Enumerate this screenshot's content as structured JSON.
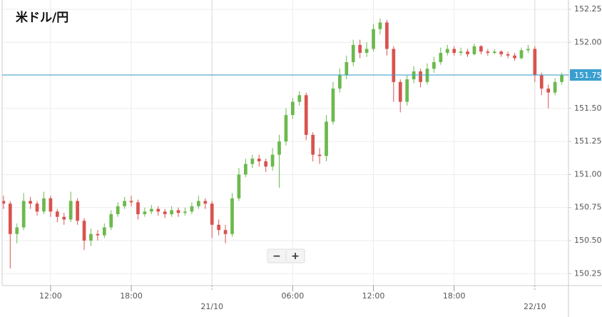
{
  "chart_data": {
    "type": "candlestick",
    "title": "米ドル/円",
    "x": [
      8.5,
      9,
      9.5,
      10,
      10.5,
      11,
      11.5,
      12,
      12.5,
      13,
      13.5,
      14,
      14.5,
      15,
      15.5,
      16,
      16.5,
      17,
      17.5,
      18,
      18.5,
      19,
      19.5,
      20,
      20.5,
      21,
      21.5,
      22,
      22.5,
      23,
      23.5,
      24,
      24.5,
      25,
      25.5,
      26,
      26.5,
      27,
      27.5,
      28,
      28.5,
      29,
      29.5,
      30,
      30.5,
      31,
      31.5,
      32,
      32.5,
      33,
      33.5,
      34,
      34.5,
      35,
      35.5,
      36,
      36.5,
      37,
      37.5,
      38,
      38.5,
      39,
      39.5,
      40,
      40.5,
      41,
      41.5,
      42,
      42.5,
      43,
      43.5,
      44,
      44.5,
      45,
      45.5,
      46,
      46.5,
      47,
      47.5,
      48,
      48.5,
      49,
      49.5,
      50
    ],
    "open": [
      150.8,
      150.78,
      150.55,
      150.6,
      150.8,
      150.78,
      150.72,
      150.82,
      150.72,
      150.68,
      150.66,
      150.8,
      150.65,
      150.5,
      150.55,
      150.54,
      150.6,
      150.7,
      150.76,
      150.8,
      150.79,
      150.7,
      150.72,
      150.74,
      150.72,
      150.7,
      150.73,
      150.71,
      150.72,
      150.76,
      150.8,
      150.78,
      150.62,
      150.58,
      150.55,
      150.82,
      151.0,
      151.08,
      151.12,
      151.1,
      151.06,
      151.15,
      151.25,
      151.45,
      151.55,
      151.6,
      151.3,
      151.15,
      151.14,
      151.4,
      151.65,
      151.75,
      151.85,
      151.98,
      151.92,
      151.95,
      152.1,
      152.15,
      151.95,
      151.7,
      151.55,
      151.72,
      151.78,
      151.7,
      151.8,
      151.85,
      151.92,
      151.95,
      151.92,
      151.93,
      151.91,
      151.97,
      151.93,
      151.92,
      151.93,
      151.91,
      151.9,
      151.88,
      151.94,
      151.95,
      151.75,
      151.65,
      151.62,
      151.7
    ],
    "high": [
      150.84,
      150.8,
      150.63,
      150.86,
      150.83,
      150.8,
      150.87,
      150.84,
      150.74,
      150.71,
      150.87,
      150.82,
      150.67,
      150.59,
      150.58,
      150.63,
      150.73,
      150.79,
      150.83,
      150.84,
      150.81,
      150.75,
      150.77,
      150.76,
      150.74,
      150.76,
      150.75,
      150.75,
      150.79,
      150.84,
      150.82,
      150.8,
      150.66,
      150.62,
      150.86,
      151.05,
      151.12,
      151.15,
      151.15,
      151.12,
      151.2,
      151.3,
      151.5,
      151.58,
      151.63,
      151.62,
      151.32,
      151.2,
      151.45,
      151.7,
      151.8,
      151.9,
      152.02,
      152.02,
      152.0,
      152.14,
      152.18,
      152.17,
      151.97,
      151.72,
      151.75,
      151.82,
      151.8,
      151.84,
      151.89,
      151.96,
      151.98,
      151.97,
      151.96,
      151.95,
      151.99,
      151.98,
      151.95,
      151.95,
      151.94,
      151.93,
      151.92,
      151.96,
      151.98,
      151.97,
      151.77,
      151.68,
      151.73,
      151.77
    ],
    "low": [
      150.74,
      150.29,
      150.48,
      150.58,
      150.74,
      150.69,
      150.7,
      150.68,
      150.64,
      150.62,
      150.64,
      150.62,
      150.43,
      150.46,
      150.5,
      150.52,
      150.58,
      150.68,
      150.74,
      150.76,
      150.66,
      150.68,
      150.7,
      150.69,
      150.67,
      150.68,
      150.68,
      150.69,
      150.7,
      150.74,
      150.74,
      150.52,
      150.54,
      150.48,
      150.53,
      150.8,
      150.98,
      151.05,
      151.06,
      151.02,
      151.03,
      150.9,
      151.22,
      151.42,
      151.52,
      151.26,
      151.1,
      151.08,
      151.1,
      151.38,
      151.62,
      151.72,
      151.82,
      151.88,
      151.89,
      151.93,
      152.06,
      151.9,
      151.55,
      151.47,
      151.52,
      151.69,
      151.66,
      151.68,
      151.77,
      151.83,
      151.9,
      151.9,
      151.9,
      151.89,
      151.9,
      151.91,
      151.9,
      151.91,
      151.89,
      151.88,
      151.86,
      151.87,
      151.92,
      151.7,
      151.6,
      151.5,
      151.6,
      151.68
    ],
    "close": [
      150.78,
      150.55,
      150.6,
      150.8,
      150.78,
      150.72,
      150.82,
      150.72,
      150.68,
      150.66,
      150.8,
      150.65,
      150.5,
      150.55,
      150.54,
      150.6,
      150.7,
      150.76,
      150.8,
      150.79,
      150.7,
      150.72,
      150.74,
      150.72,
      150.7,
      150.73,
      150.71,
      150.72,
      150.76,
      150.8,
      150.78,
      150.62,
      150.58,
      150.55,
      150.82,
      151.0,
      151.08,
      151.12,
      151.1,
      151.06,
      151.15,
      151.25,
      151.45,
      151.55,
      151.6,
      151.3,
      151.15,
      151.14,
      151.4,
      151.65,
      151.75,
      151.85,
      151.98,
      151.92,
      151.95,
      152.1,
      152.15,
      151.95,
      151.7,
      151.55,
      151.72,
      151.78,
      151.7,
      151.8,
      151.85,
      151.92,
      151.95,
      151.92,
      151.93,
      151.91,
      151.97,
      151.93,
      151.92,
      151.93,
      151.91,
      151.9,
      151.88,
      151.94,
      151.95,
      151.75,
      151.65,
      151.62,
      151.7,
      151.75
    ],
    "up_color": "#6cb94d",
    "down_color": "#d9534f",
    "xlim": [
      8.4,
      50.5
    ],
    "xticks": [
      {
        "value": 12,
        "label": "12:00"
      },
      {
        "value": 18,
        "label": "18:00"
      },
      {
        "value": 24,
        "label": "21/10"
      },
      {
        "value": 30,
        "label": "06:00"
      },
      {
        "value": 36,
        "label": "12:00"
      },
      {
        "value": 42,
        "label": "18:00"
      },
      {
        "value": 48,
        "label": "22/10"
      }
    ],
    "date_ticks": [
      24,
      48
    ],
    "ylim": [
      150.16,
      152.32
    ],
    "yticks": [
      {
        "value": 150.25,
        "label": "150.250"
      },
      {
        "value": 150.5,
        "label": "150.500"
      },
      {
        "value": 150.75,
        "label": "150.750"
      },
      {
        "value": 151,
        "label": "151.000"
      },
      {
        "value": 151.25,
        "label": "151.250"
      },
      {
        "value": 151.5,
        "label": "151.500"
      },
      {
        "value": 151.75,
        "label": "151.750"
      },
      {
        "value": 152,
        "label": "152.000"
      },
      {
        "value": 152.25,
        "label": "152.250"
      }
    ],
    "grid": true,
    "current_price": {
      "value": 151.753,
      "label": "151.753",
      "color": "#3a9fd0"
    }
  },
  "controls": [
    "−",
    "+"
  ]
}
